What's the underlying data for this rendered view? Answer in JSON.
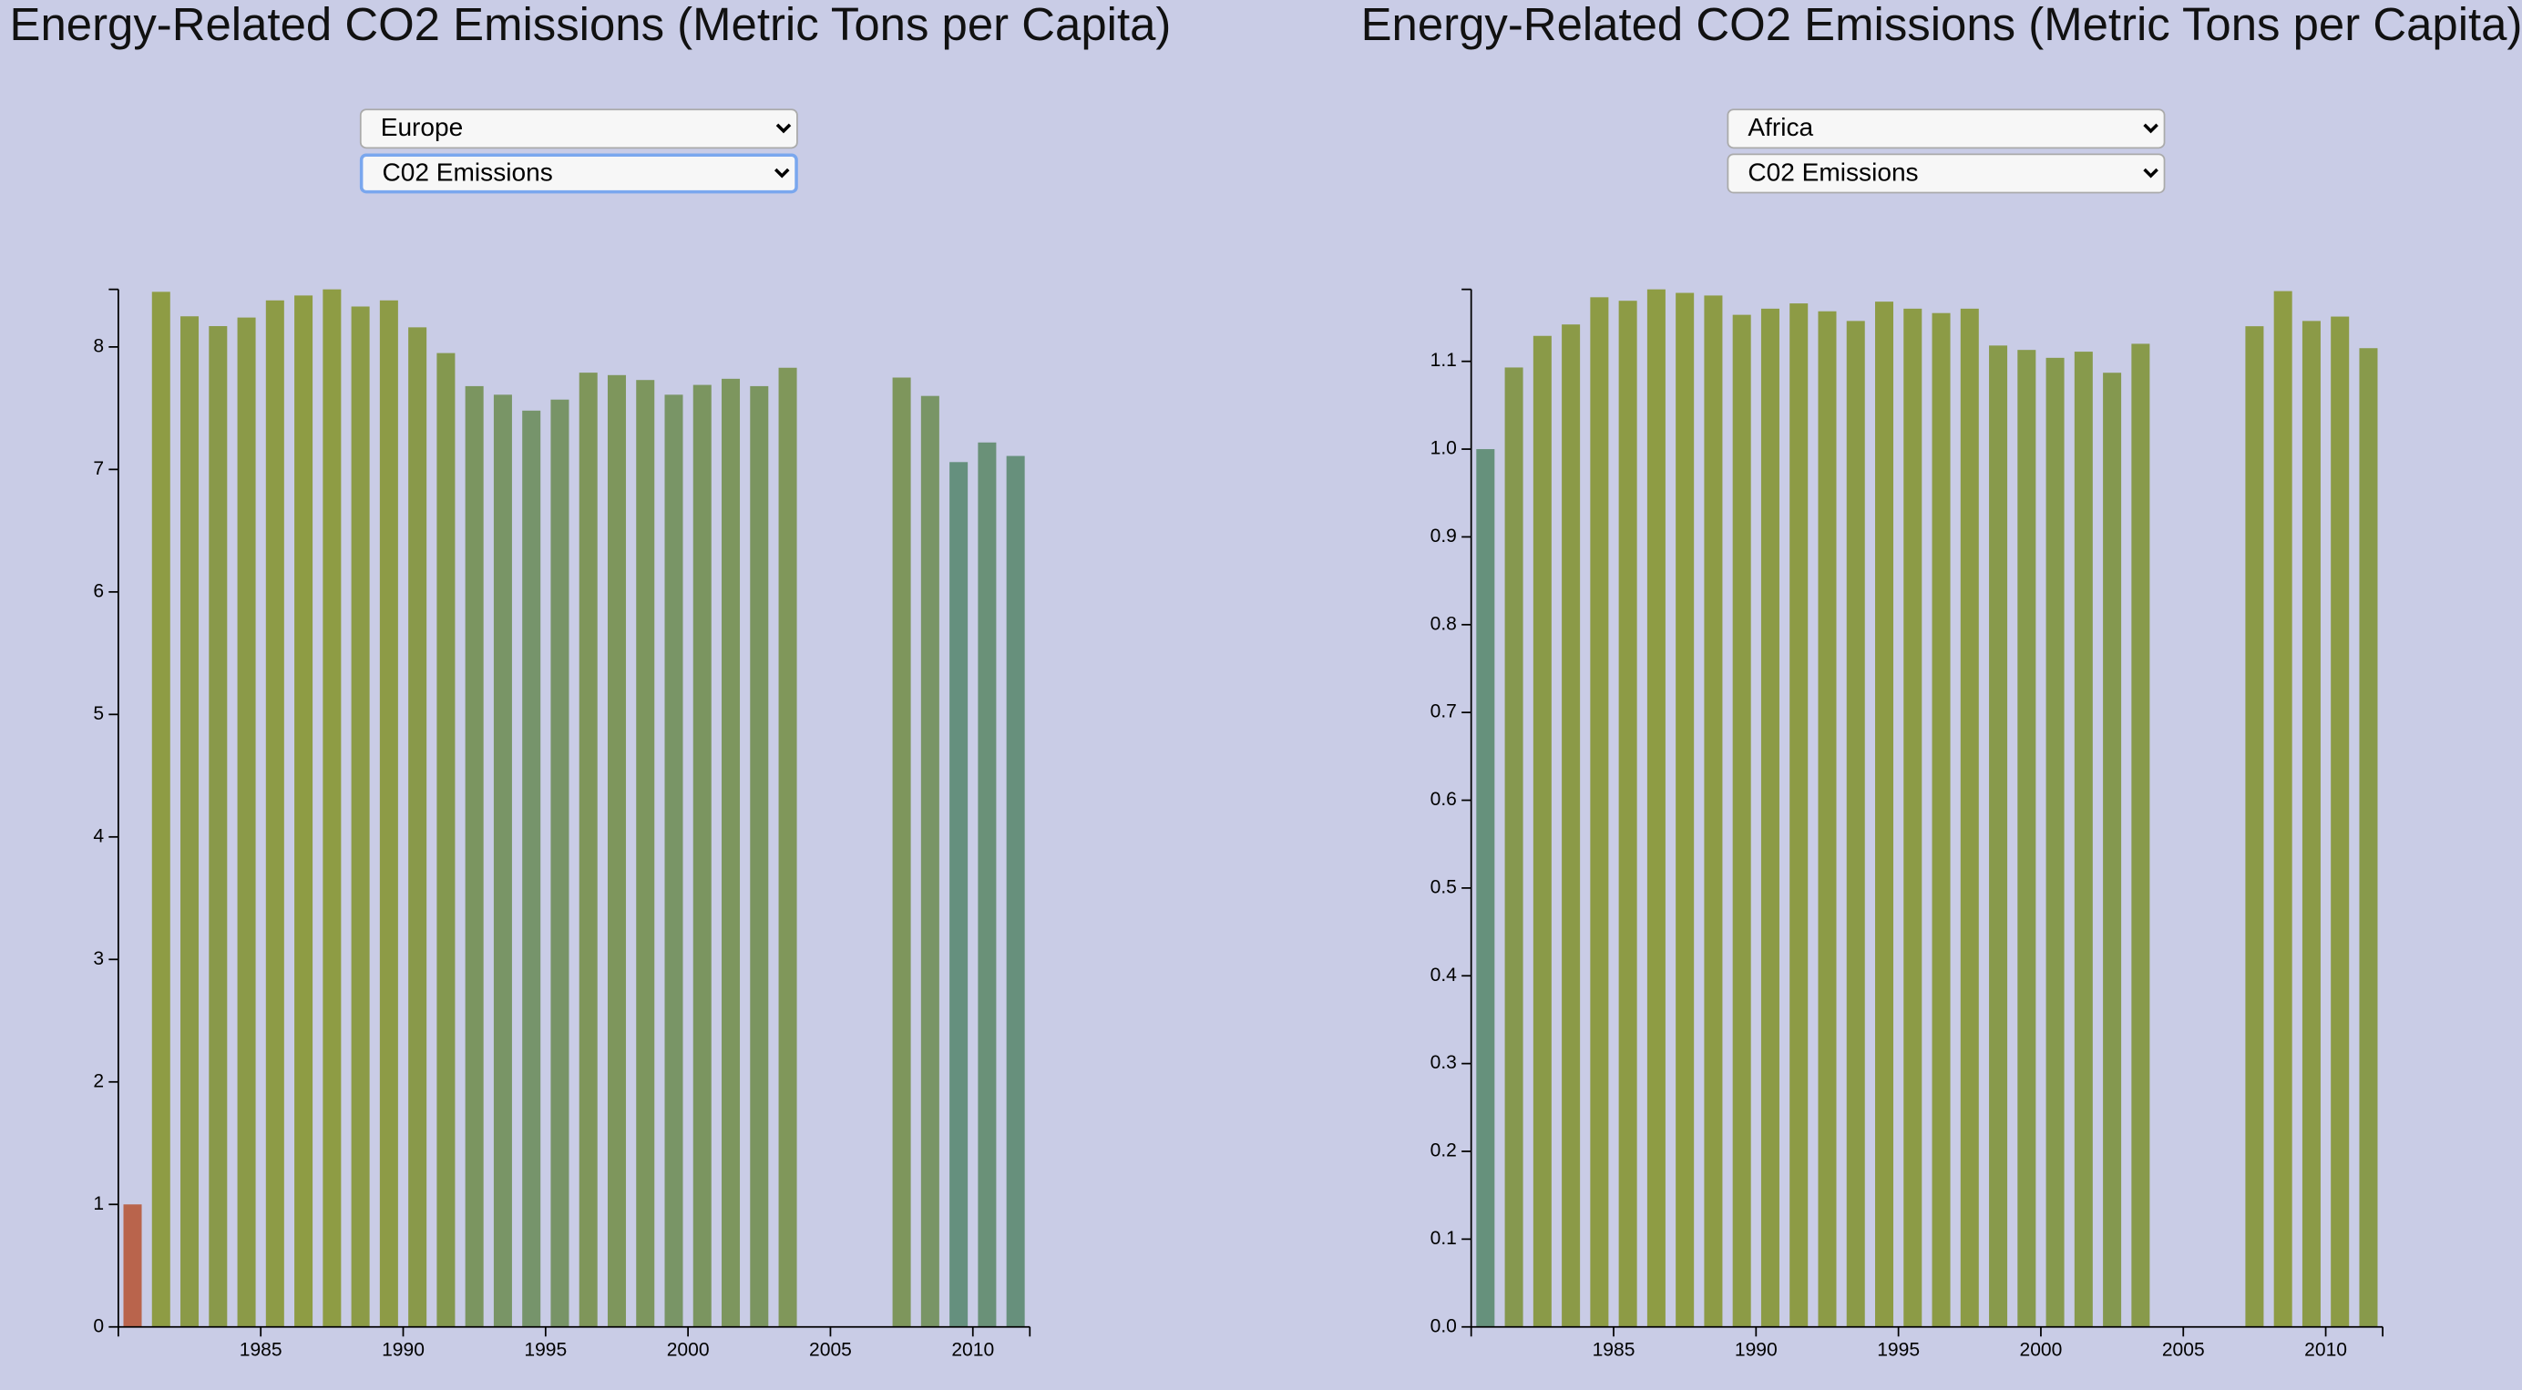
{
  "chart_data": [
    {
      "type": "bar",
      "title": "Energy-Related CO2 Emissions (Metric Tons per Capita)",
      "controls": [
        "Europe",
        "C02 Emissions"
      ],
      "x": [
        1980,
        1981,
        1982,
        1983,
        1984,
        1985,
        1986,
        1987,
        1988,
        1989,
        1990,
        1991,
        1992,
        1993,
        1994,
        1995,
        1996,
        1997,
        1998,
        1999,
        2000,
        2001,
        2002,
        2003,
        2004,
        2005,
        2006,
        2007,
        2008,
        2009,
        2010,
        2011
      ],
      "values": [
        1.0,
        8.45,
        8.25,
        8.17,
        8.24,
        8.38,
        8.42,
        8.47,
        8.33,
        8.38,
        8.16,
        7.95,
        7.68,
        7.61,
        7.48,
        7.57,
        7.79,
        7.77,
        7.73,
        7.61,
        7.69,
        7.74,
        7.68,
        7.83,
        null,
        null,
        null,
        7.75,
        7.6,
        7.06,
        7.22,
        7.11
      ],
      "colors": [
        "#b9644c",
        "#8e9c44",
        "#8b9a48",
        "#89994a",
        "#8b9a48",
        "#8d9b46",
        "#8e9c44",
        "#8e9c44",
        "#8c9b47",
        "#8d9b46",
        "#89994a",
        "#84984f",
        "#7b9560",
        "#799566",
        "#76946b",
        "#789467",
        "#7f965a",
        "#7e965c",
        "#7d965e",
        "#799566",
        "#7b9560",
        "#7d965e",
        "#7b9560",
        "#80975a",
        null,
        null,
        null,
        "#7e965c",
        "#799566",
        "#65907e",
        "#6a9178",
        "#67907c"
      ],
      "xlim": [
        1980,
        2012
      ],
      "xticks": [
        1985,
        1990,
        1995,
        2000,
        2005,
        2010
      ],
      "ylim": [
        0,
        8.47
      ],
      "yticks": [
        0,
        1,
        2,
        3,
        4,
        5,
        6,
        7,
        8
      ]
    },
    {
      "type": "bar",
      "title": "Energy-Related CO2 Emissions (Metric Tons per Capita)",
      "controls": [
        "Africa",
        "C02 Emissions"
      ],
      "x": [
        1980,
        1981,
        1982,
        1983,
        1984,
        1985,
        1986,
        1987,
        1988,
        1989,
        1990,
        1991,
        1992,
        1993,
        1994,
        1995,
        1996,
        1997,
        1998,
        1999,
        2000,
        2001,
        2002,
        2003,
        2004,
        2005,
        2006,
        2007,
        2008,
        2009,
        2010,
        2011
      ],
      "values": [
        1.0,
        1.093,
        1.129,
        1.142,
        1.173,
        1.169,
        1.182,
        1.178,
        1.175,
        1.153,
        1.16,
        1.166,
        1.157,
        1.146,
        1.168,
        1.16,
        1.155,
        1.16,
        1.118,
        1.113,
        1.104,
        1.111,
        1.087,
        1.12,
        null,
        null,
        null,
        1.14,
        1.18,
        1.146,
        1.151,
        1.115
      ],
      "colors": [
        "#66917c",
        "#86984f",
        "#8a9a48",
        "#8b9a47",
        "#8d9b45",
        "#8d9b45",
        "#8e9c44",
        "#8e9c44",
        "#8d9b45",
        "#8c9b46",
        "#8c9b46",
        "#8d9b45",
        "#8c9b46",
        "#8b9a47",
        "#8d9b45",
        "#8c9b46",
        "#8c9b46",
        "#8c9b46",
        "#889a4b",
        "#879a4c",
        "#86994d",
        "#879a4c",
        "#84984f",
        "#889a4b",
        null,
        null,
        null,
        "#8b9a47",
        "#8e9c44",
        "#8b9a47",
        "#8c9b46",
        "#889a4b"
      ],
      "xlim": [
        1980,
        2012
      ],
      "xticks": [
        1985,
        1990,
        1995,
        2000,
        2005,
        2010
      ],
      "ylim": [
        0,
        1.182
      ],
      "yticks": [
        {
          "value": 0,
          "label": "0.0"
        },
        0.1,
        0.2,
        0.3,
        0.4,
        0.5,
        0.6,
        0.7,
        0.8,
        0.9,
        {
          "value": 1,
          "label": "1.0"
        },
        1.1
      ]
    }
  ]
}
